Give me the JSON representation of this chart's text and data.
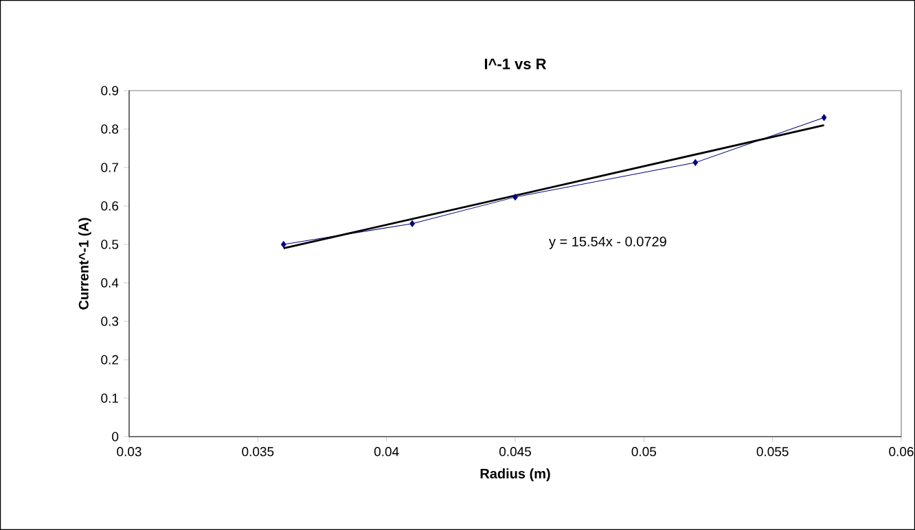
{
  "chart_data": {
    "type": "line",
    "title": "I^-1 vs R",
    "xlabel": "Radius (m)",
    "ylabel": "Current^-1 (A)",
    "x": [
      0.036,
      0.041,
      0.045,
      0.052,
      0.057
    ],
    "series": [
      {
        "color": "#000080",
        "marker": "diamond",
        "values": [
          0.5,
          0.554,
          0.623,
          0.713,
          0.83
        ]
      },
      {
        "color": "#000000",
        "marker": "none",
        "x": [
          0.036,
          0.057
        ],
        "values": [
          0.49,
          0.81
        ]
      }
    ],
    "xlim": [
      0.03,
      0.06
    ],
    "xticks": [
      0.03,
      0.035,
      0.04,
      0.045,
      0.05,
      0.055,
      0.06
    ],
    "ylim": [
      0,
      0.9
    ],
    "yticks": [
      0,
      0.1,
      0.2,
      0.3,
      0.4,
      0.5,
      0.6,
      0.7,
      0.8,
      0.9
    ],
    "grid": false,
    "annotations": [
      "y = 15.54x - 0.0729"
    ]
  }
}
